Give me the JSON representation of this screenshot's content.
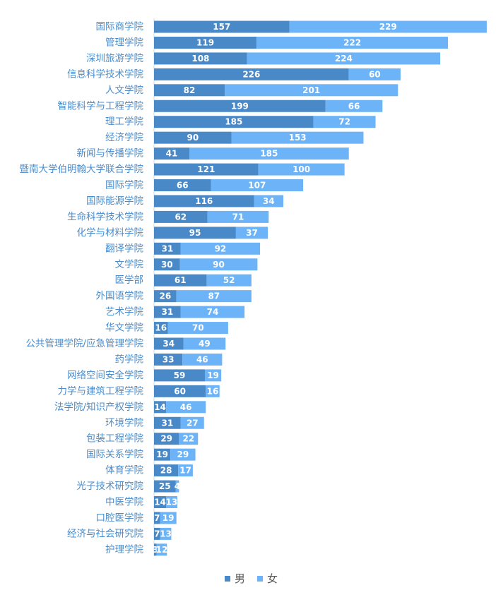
{
  "chart_data": {
    "type": "bar",
    "orientation": "horizontal",
    "stacked": true,
    "categories": [
      "国际商学院",
      "管理学院",
      "深圳旅游学院",
      "信息科学技术学院",
      "人文学院",
      "智能科学与工程学院",
      "理工学院",
      "经济学院",
      "新闻与传播学院",
      "暨南大学伯明翰大学联合学院",
      "国际学院",
      "国际能源学院",
      "生命科学技术学院",
      "化学与材料学院",
      "翻译学院",
      "文学院",
      "医学部",
      "外国语学院",
      "艺术学院",
      "华文学院",
      "公共管理学院/应急管理学院",
      "药学院",
      "网络空间安全学院",
      "力学与建筑工程学院",
      "法学院/知识产权学院",
      "环境学院",
      "包装工程学院",
      "国际关系学院",
      "体育学院",
      "光子技术研究院",
      "中医学院",
      "口腔医学院",
      "经济与社会研究院",
      "护理学院"
    ],
    "series": [
      {
        "name": "男",
        "color": "#4a89c8",
        "values": [
          157,
          119,
          108,
          226,
          82,
          199,
          185,
          90,
          41,
          121,
          66,
          116,
          62,
          95,
          31,
          30,
          61,
          26,
          31,
          16,
          34,
          33,
          59,
          60,
          14,
          31,
          29,
          19,
          28,
          25,
          14,
          7,
          7,
          3
        ]
      },
      {
        "name": "女",
        "color": "#6cb4f7",
        "values": [
          229,
          222,
          224,
          60,
          201,
          66,
          72,
          153,
          185,
          100,
          107,
          34,
          71,
          37,
          92,
          90,
          52,
          87,
          74,
          70,
          49,
          46,
          19,
          16,
          46,
          27,
          22,
          29,
          17,
          4,
          13,
          19,
          13,
          12
        ]
      }
    ],
    "legend": {
      "position": "bottom-center"
    },
    "grid": false,
    "category_label_color": "#4a8ccc",
    "value_label_color": "#ffffff"
  }
}
